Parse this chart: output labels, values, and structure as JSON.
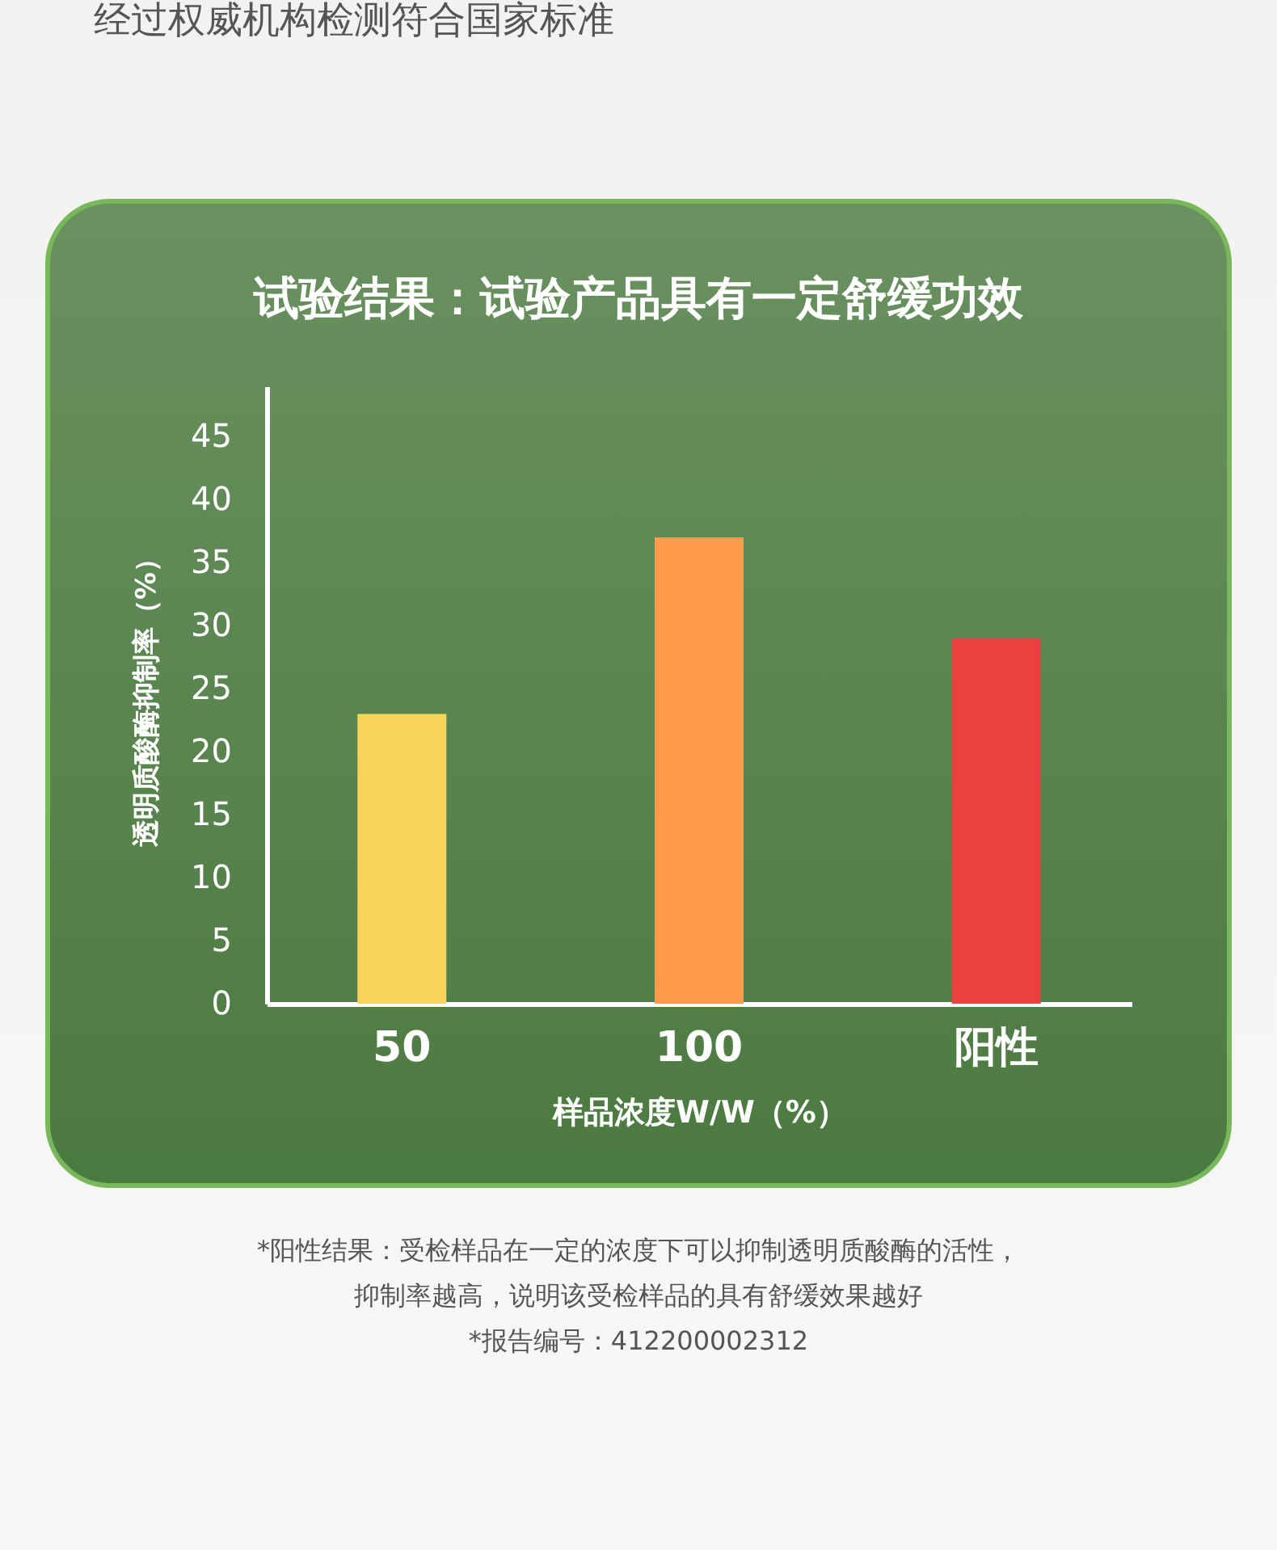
{
  "chart_data": {
    "type": "bar",
    "title": "试验结果：试验产品具有一定舒缓功效",
    "xlabel": "样品浓度W/W（%）",
    "ylabel": "透明质酸酶抑制率（%）",
    "categories": [
      "50",
      "100",
      "阳性"
    ],
    "values": [
      23,
      37,
      29
    ],
    "colors": [
      "#f7d45a",
      "#ff9a48",
      "#ec3f3f"
    ],
    "ylim": [
      0,
      49
    ],
    "yticks": [
      0,
      5,
      10,
      15,
      20,
      25,
      30,
      35,
      40,
      45
    ],
    "grid": false,
    "legend": false,
    "annotations": [
      "经过权威机构检测符合国家标准",
      "*阳性结果：受检样品在一定的浓度下可以抑制透明质酸酶的活性，",
      "抑制率越高，说明该受检样品的具有舒缓效果越好",
      "*报告编号：412200002312"
    ]
  }
}
